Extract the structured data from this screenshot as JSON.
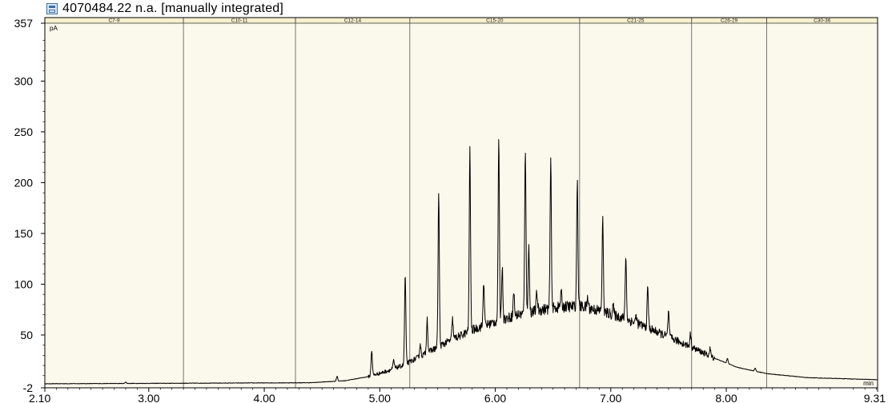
{
  "header": {
    "title": "4070484.22 n.a.  [manually integrated]",
    "icon": "chromatogram-icon"
  },
  "chart_data": {
    "type": "line",
    "title": "4070484.22 n.a.  [manually integrated]",
    "xlabel": "min",
    "ylabel": "pA",
    "xlim": [
      2.1,
      9.31
    ],
    "ylim": [
      -2,
      357
    ],
    "x_ticks": [
      2.1,
      3.0,
      4.0,
      5.0,
      6.0,
      7.0,
      8.0,
      9.31
    ],
    "x_tick_labels": [
      "2.10",
      "3.00",
      "4.00",
      "5.00",
      "6.00",
      "7.00",
      "8.00",
      "9.31"
    ],
    "y_ticks": [
      -2,
      50,
      100,
      150,
      200,
      250,
      300,
      357
    ],
    "y_tick_labels": [
      "-2",
      "50",
      "100",
      "150",
      "200",
      "250",
      "300",
      "357"
    ],
    "grid": false,
    "colors": {
      "plot_background": "#fbf8ec",
      "band_background": "#f7f0cf",
      "trace": "#000000",
      "frame": "#000000"
    },
    "regions": [
      {
        "label": "C7-9",
        "start": 2.1,
        "end": 3.3
      },
      {
        "label": "C10-11",
        "start": 3.3,
        "end": 4.27
      },
      {
        "label": "C12-14",
        "start": 4.27,
        "end": 5.26
      },
      {
        "label": "C15-20",
        "start": 5.26,
        "end": 6.73
      },
      {
        "label": "C21-25",
        "start": 6.73,
        "end": 7.7
      },
      {
        "label": "C26-29",
        "start": 7.7,
        "end": 8.35
      },
      {
        "label": "C30-36",
        "start": 8.35,
        "end": 9.31
      }
    ],
    "baseline": [
      {
        "x": 2.1,
        "y": 2
      },
      {
        "x": 4.4,
        "y": 3
      },
      {
        "x": 4.7,
        "y": 5
      },
      {
        "x": 4.9,
        "y": 9
      },
      {
        "x": 5.05,
        "y": 14
      },
      {
        "x": 5.2,
        "y": 20
      },
      {
        "x": 5.4,
        "y": 32
      },
      {
        "x": 5.6,
        "y": 44
      },
      {
        "x": 5.8,
        "y": 55
      },
      {
        "x": 6.0,
        "y": 63
      },
      {
        "x": 6.2,
        "y": 70
      },
      {
        "x": 6.4,
        "y": 75
      },
      {
        "x": 6.6,
        "y": 78
      },
      {
        "x": 6.75,
        "y": 78
      },
      {
        "x": 6.9,
        "y": 74
      },
      {
        "x": 7.1,
        "y": 67
      },
      {
        "x": 7.3,
        "y": 58
      },
      {
        "x": 7.5,
        "y": 48
      },
      {
        "x": 7.7,
        "y": 38
      },
      {
        "x": 7.9,
        "y": 27
      },
      {
        "x": 8.1,
        "y": 18
      },
      {
        "x": 8.35,
        "y": 12
      },
      {
        "x": 8.7,
        "y": 8
      },
      {
        "x": 9.31,
        "y": 6
      }
    ],
    "peaks": [
      {
        "x": 2.8,
        "height": 1.5
      },
      {
        "x": 4.63,
        "height": 5
      },
      {
        "x": 4.93,
        "height": 25
      },
      {
        "x": 5.12,
        "height": 8
      },
      {
        "x": 5.22,
        "height": 88
      },
      {
        "x": 5.35,
        "height": 12
      },
      {
        "x": 5.41,
        "height": 34
      },
      {
        "x": 5.51,
        "height": 150
      },
      {
        "x": 5.63,
        "height": 20
      },
      {
        "x": 5.78,
        "height": 178
      },
      {
        "x": 5.9,
        "height": 44
      },
      {
        "x": 6.03,
        "height": 176
      },
      {
        "x": 6.06,
        "height": 52
      },
      {
        "x": 6.16,
        "height": 24
      },
      {
        "x": 6.26,
        "height": 163
      },
      {
        "x": 6.29,
        "height": 65
      },
      {
        "x": 6.36,
        "height": 18
      },
      {
        "x": 6.48,
        "height": 145
      },
      {
        "x": 6.57,
        "height": 14
      },
      {
        "x": 6.71,
        "height": 123
      },
      {
        "x": 6.8,
        "height": 10
      },
      {
        "x": 6.93,
        "height": 90
      },
      {
        "x": 7.02,
        "height": 9
      },
      {
        "x": 7.13,
        "height": 62
      },
      {
        "x": 7.22,
        "height": 8
      },
      {
        "x": 7.32,
        "height": 40
      },
      {
        "x": 7.5,
        "height": 25
      },
      {
        "x": 7.69,
        "height": 13
      },
      {
        "x": 7.86,
        "height": 7
      },
      {
        "x": 8.01,
        "height": 5
      },
      {
        "x": 8.25,
        "height": 3
      }
    ]
  }
}
